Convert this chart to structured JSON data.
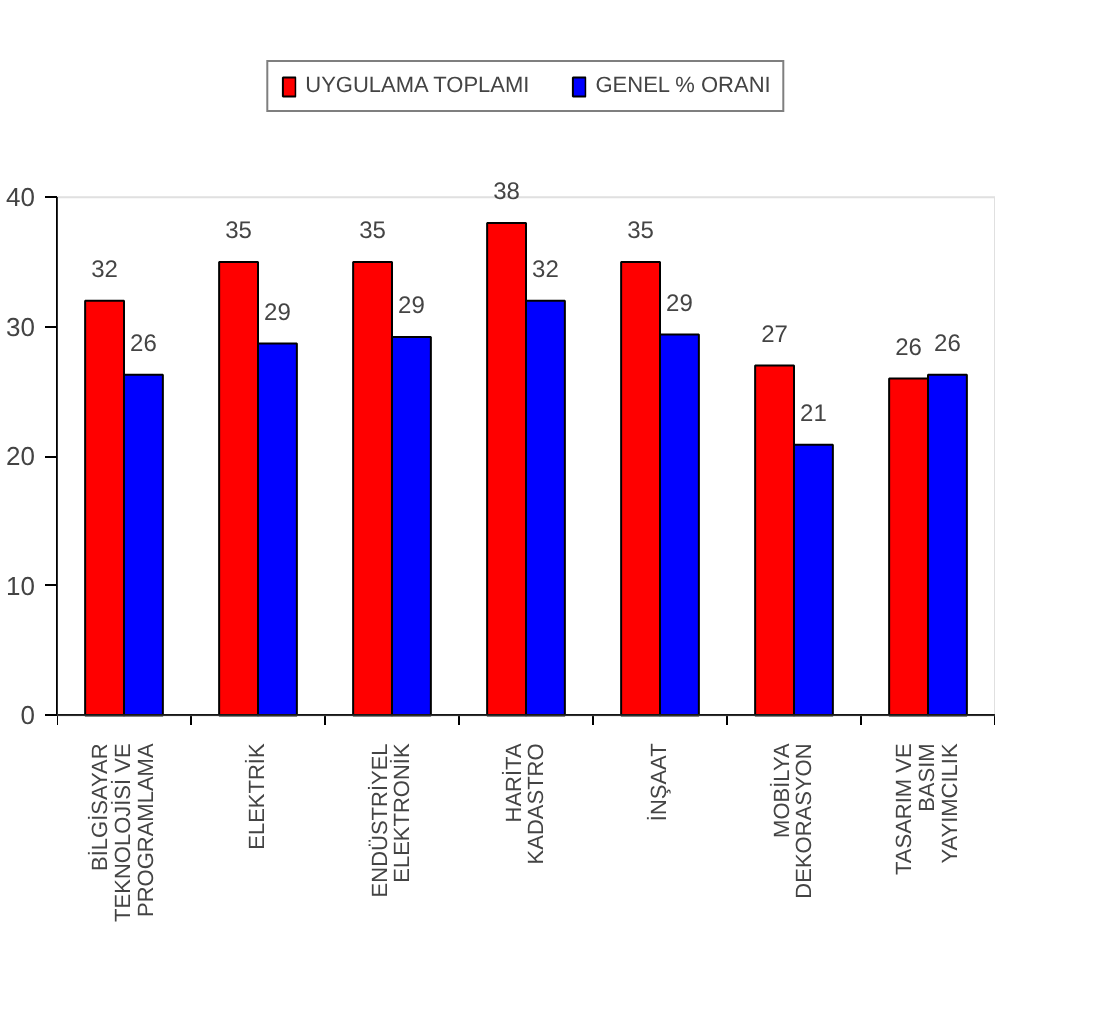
{
  "chart_data": {
    "type": "bar",
    "categories": [
      "BİLGİSAYAR\nTEKNOLOJİSİ VE\nPROGRAMLAMA",
      "ELEKTRİK",
      "ENDÜSTRİYEL\nELEKTRONİK",
      "HARİTA\nKADASTRO",
      "İNŞAAT",
      "MOBİLYA\nDEKORASYON",
      "TASARIM VE\nBASIM\nYAYIMCILIK"
    ],
    "series": [
      {
        "name": "UYGULAMA TOPLAMI",
        "color": "#ff0000",
        "values": [
          32,
          35,
          35,
          38,
          35,
          27,
          26
        ],
        "value_labels": [
          "32",
          "35",
          "35",
          "38",
          "35",
          "27",
          "26"
        ]
      },
      {
        "name": "GENEL % ORANI",
        "color": "#0000ff",
        "values": [
          26.3,
          28.7,
          29.2,
          32,
          29.4,
          20.9,
          26.3
        ],
        "value_labels": [
          "26",
          "29",
          "29",
          "32",
          "29",
          "21",
          "26"
        ]
      }
    ],
    "ylim": [
      0,
      40
    ],
    "yticks": [
      0,
      10,
      20,
      30,
      40
    ],
    "grid": false,
    "legend": "top"
  }
}
